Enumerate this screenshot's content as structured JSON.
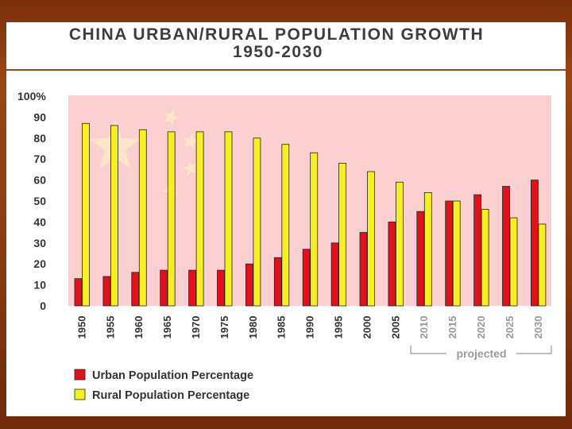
{
  "title": {
    "line1": "CHINA URBAN/RURAL POPULATION GROWTH",
    "line2": "1950-2030"
  },
  "colors": {
    "urban": "#e0121b",
    "rural": "#f7ef1f",
    "plot_bg": "#fccfd0",
    "star": "#fbe6c8",
    "border": "#9a4a1c"
  },
  "chart_data": {
    "type": "bar",
    "title": "CHINA URBAN/RURAL POPULATION GROWTH 1950-2030",
    "xlabel": "",
    "ylabel": "",
    "ylim": [
      0,
      100
    ],
    "yticks": [
      "100%",
      "90",
      "80",
      "70",
      "60",
      "50",
      "40",
      "30",
      "20",
      "10",
      "0"
    ],
    "categories": [
      "1950",
      "1955",
      "1960",
      "1965",
      "1970",
      "1975",
      "1980",
      "1985",
      "1990",
      "1995",
      "2000",
      "2005",
      "2010",
      "2015",
      "2020",
      "2025",
      "2030"
    ],
    "projected_categories": [
      "2010",
      "2015",
      "2020",
      "2025",
      "2030"
    ],
    "projected_label": "projected",
    "series": [
      {
        "name": "Urban Population Percentage",
        "values": [
          13,
          14,
          16,
          17,
          17,
          17,
          20,
          23,
          27,
          30,
          35,
          40,
          45,
          50,
          53,
          57,
          60
        ]
      },
      {
        "name": "Rural Population Percentage",
        "values": [
          87,
          86,
          84,
          83,
          83,
          83,
          80,
          77,
          73,
          68,
          64,
          59,
          54,
          50,
          46,
          42,
          39
        ]
      }
    ],
    "legend": [
      "Urban Population Percentage",
      "Rural Population Percentage"
    ],
    "legend_position": "bottom-left",
    "grid": false
  }
}
